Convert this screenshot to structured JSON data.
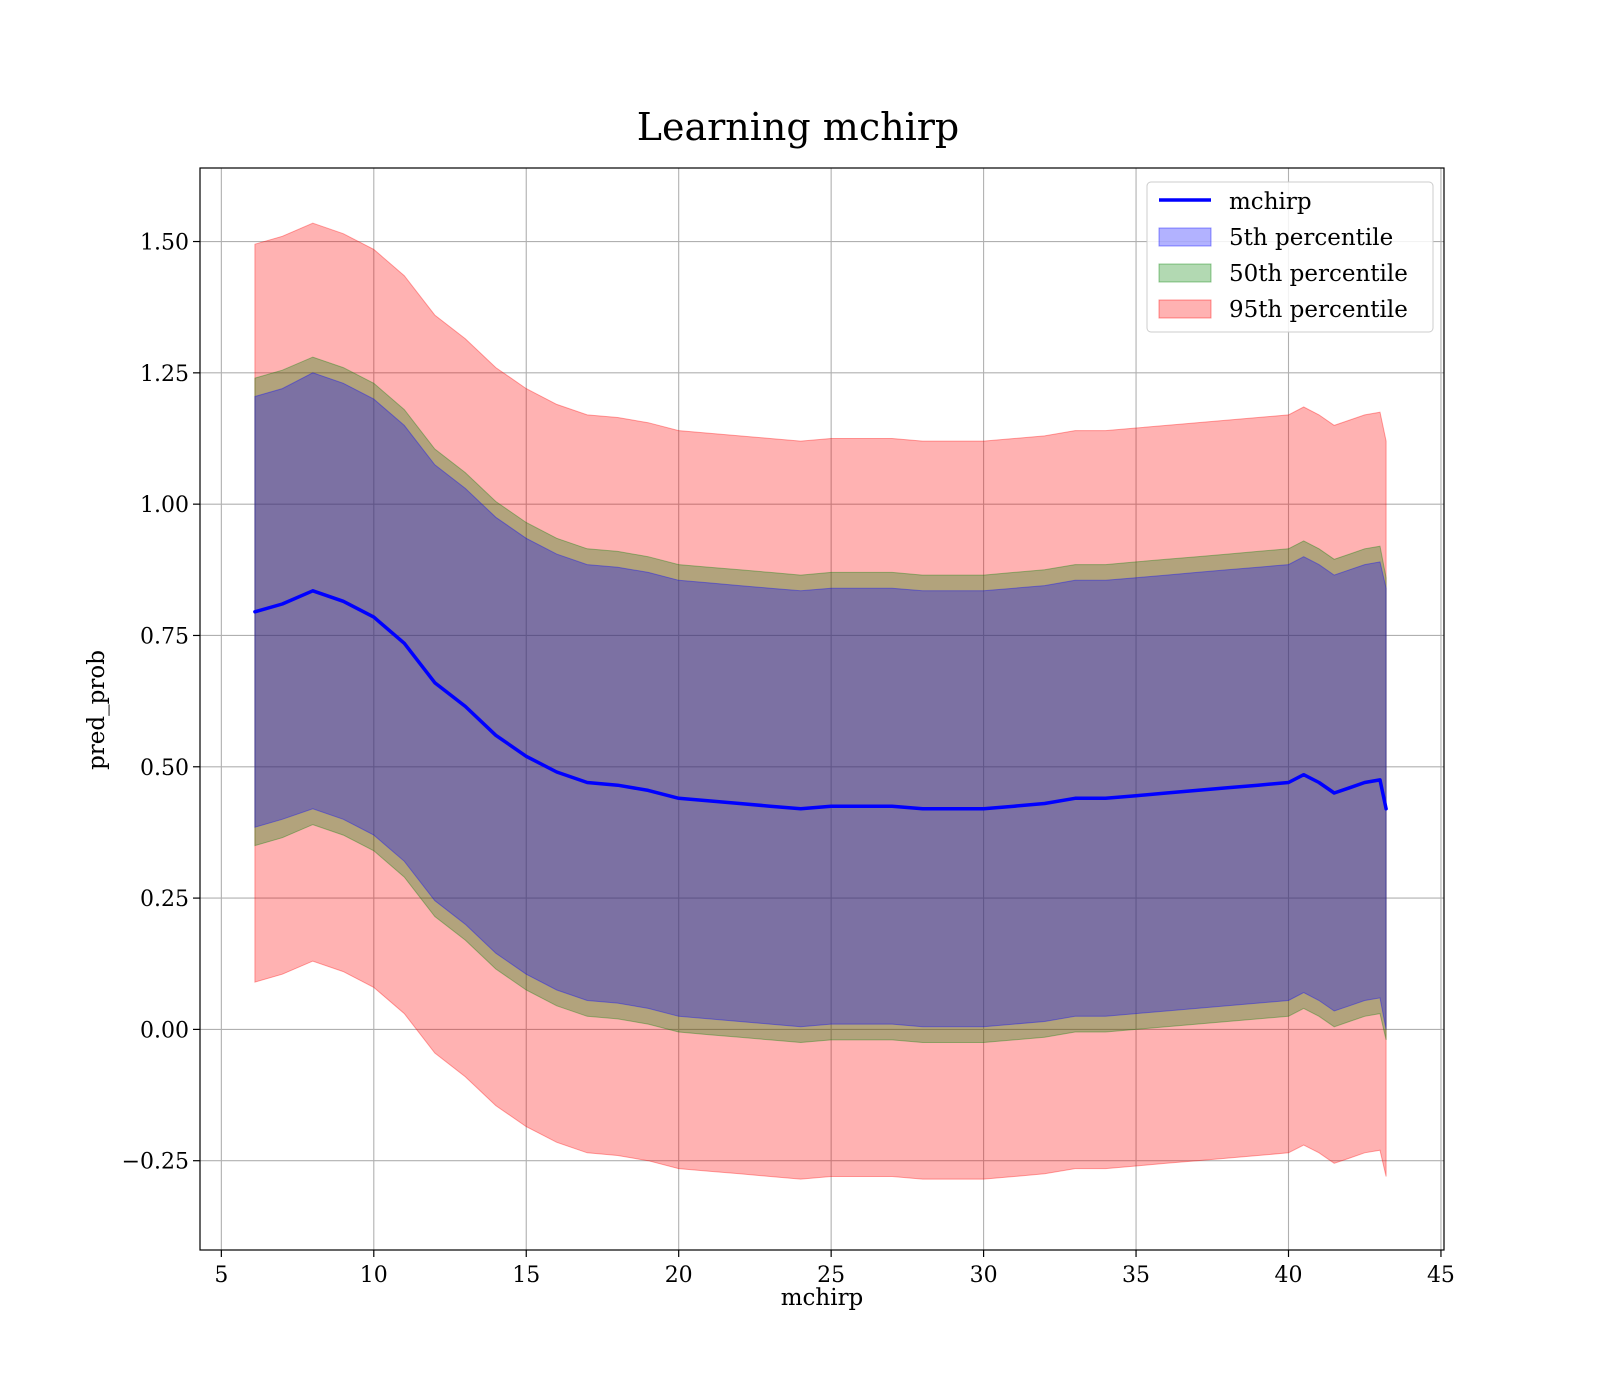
{
  "chart_data": {
    "type": "line",
    "title": "Learning mchirp",
    "xlabel": "mchirp",
    "ylabel": "pred_prob",
    "xlim": [
      4.3,
      45.1
    ],
    "ylim": [
      -0.42,
      1.64
    ],
    "x_ticks": [
      5,
      10,
      15,
      20,
      25,
      30,
      35,
      40,
      45
    ],
    "x_tick_labels": [
      "5",
      "10",
      "15",
      "20",
      "25",
      "30",
      "35",
      "40",
      "45"
    ],
    "y_ticks": [
      -0.25,
      0,
      0.25,
      0.5,
      0.75,
      1.0,
      1.25,
      1.5
    ],
    "y_tick_labels": [
      "−0.25",
      "0.00",
      "0.25",
      "0.50",
      "0.75",
      "1.00",
      "1.25",
      "1.50"
    ],
    "grid": true,
    "legend_position": "top-right",
    "x": [
      6.1,
      7,
      8,
      9,
      10,
      11,
      12,
      13,
      14,
      15,
      16,
      17,
      18,
      19,
      20,
      21,
      22,
      23,
      24,
      25,
      26,
      27,
      28,
      29,
      30,
      31,
      32,
      33,
      34,
      35,
      36,
      37,
      38,
      39,
      40,
      40.5,
      41,
      41.5,
      42,
      42.5,
      43,
      43.2
    ],
    "line": {
      "name": "mchirp",
      "color": "#0000ff",
      "values": [
        0.795,
        0.81,
        0.835,
        0.815,
        0.785,
        0.735,
        0.66,
        0.615,
        0.56,
        0.52,
        0.49,
        0.47,
        0.465,
        0.455,
        0.44,
        0.435,
        0.43,
        0.425,
        0.42,
        0.425,
        0.425,
        0.425,
        0.42,
        0.42,
        0.42,
        0.425,
        0.43,
        0.44,
        0.44,
        0.445,
        0.45,
        0.455,
        0.46,
        0.465,
        0.47,
        0.485,
        0.47,
        0.45,
        0.46,
        0.47,
        0.475,
        0.42
      ]
    },
    "bands": [
      {
        "name": "5th percentile",
        "color": "#0000ff",
        "lower": [
          0.385,
          0.4,
          0.42,
          0.4,
          0.37,
          0.32,
          0.245,
          0.2,
          0.145,
          0.105,
          0.075,
          0.055,
          0.05,
          0.04,
          0.025,
          0.02,
          0.015,
          0.01,
          0.005,
          0.01,
          0.01,
          0.01,
          0.005,
          0.005,
          0.005,
          0.01,
          0.015,
          0.025,
          0.025,
          0.03,
          0.035,
          0.04,
          0.045,
          0.05,
          0.055,
          0.07,
          0.055,
          0.035,
          0.045,
          0.055,
          0.06,
          0.0
        ],
        "upper": [
          1.205,
          1.22,
          1.25,
          1.23,
          1.2,
          1.15,
          1.075,
          1.03,
          0.975,
          0.935,
          0.905,
          0.885,
          0.88,
          0.87,
          0.855,
          0.85,
          0.845,
          0.84,
          0.835,
          0.84,
          0.84,
          0.84,
          0.835,
          0.835,
          0.835,
          0.84,
          0.845,
          0.855,
          0.855,
          0.86,
          0.865,
          0.87,
          0.875,
          0.88,
          0.885,
          0.9,
          0.885,
          0.865,
          0.875,
          0.885,
          0.89,
          0.84
        ]
      },
      {
        "name": "50th percentile",
        "color": "#008000",
        "lower": [
          0.35,
          0.365,
          0.39,
          0.37,
          0.34,
          0.29,
          0.215,
          0.17,
          0.115,
          0.075,
          0.045,
          0.025,
          0.02,
          0.01,
          -0.005,
          -0.01,
          -0.015,
          -0.02,
          -0.025,
          -0.02,
          -0.02,
          -0.02,
          -0.025,
          -0.025,
          -0.025,
          -0.02,
          -0.015,
          -0.005,
          -0.005,
          0.0,
          0.005,
          0.01,
          0.015,
          0.02,
          0.025,
          0.04,
          0.025,
          0.005,
          0.015,
          0.025,
          0.03,
          -0.02
        ],
        "upper": [
          1.24,
          1.255,
          1.28,
          1.26,
          1.23,
          1.18,
          1.105,
          1.06,
          1.005,
          0.965,
          0.935,
          0.915,
          0.91,
          0.9,
          0.885,
          0.88,
          0.875,
          0.87,
          0.865,
          0.87,
          0.87,
          0.87,
          0.865,
          0.865,
          0.865,
          0.87,
          0.875,
          0.885,
          0.885,
          0.89,
          0.895,
          0.9,
          0.905,
          0.91,
          0.915,
          0.93,
          0.915,
          0.895,
          0.905,
          0.915,
          0.92,
          0.86
        ]
      },
      {
        "name": "95th percentile",
        "color": "#ff0000",
        "lower": [
          0.09,
          0.105,
          0.13,
          0.11,
          0.08,
          0.03,
          -0.045,
          -0.09,
          -0.145,
          -0.185,
          -0.215,
          -0.235,
          -0.24,
          -0.25,
          -0.265,
          -0.27,
          -0.275,
          -0.28,
          -0.285,
          -0.28,
          -0.28,
          -0.28,
          -0.285,
          -0.285,
          -0.285,
          -0.28,
          -0.275,
          -0.265,
          -0.265,
          -0.26,
          -0.255,
          -0.25,
          -0.245,
          -0.24,
          -0.235,
          -0.22,
          -0.235,
          -0.255,
          -0.245,
          -0.235,
          -0.23,
          -0.28
        ],
        "upper": [
          1.495,
          1.51,
          1.535,
          1.515,
          1.485,
          1.435,
          1.36,
          1.315,
          1.26,
          1.22,
          1.19,
          1.17,
          1.165,
          1.155,
          1.14,
          1.135,
          1.13,
          1.125,
          1.12,
          1.125,
          1.125,
          1.125,
          1.12,
          1.12,
          1.12,
          1.125,
          1.13,
          1.14,
          1.14,
          1.145,
          1.15,
          1.155,
          1.16,
          1.165,
          1.17,
          1.185,
          1.17,
          1.15,
          1.16,
          1.17,
          1.175,
          1.12
        ]
      }
    ]
  }
}
